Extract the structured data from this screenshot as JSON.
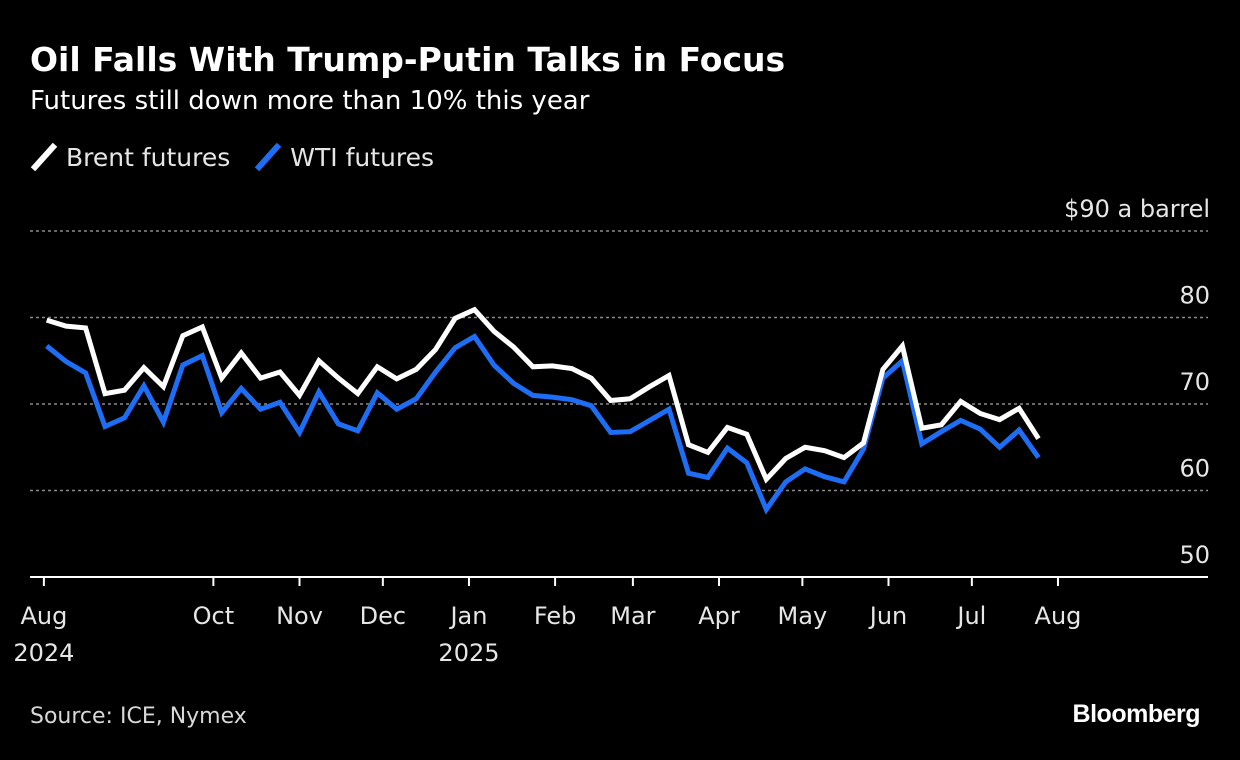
{
  "header": {
    "title": "Oil Falls With Trump-Putin Talks in Focus",
    "subtitle": "Futures still down more than 10% this year"
  },
  "legend": {
    "items": [
      {
        "label": "Brent futures",
        "color": "#ffffff"
      },
      {
        "label": "WTI futures",
        "color": "#1e6ef5"
      }
    ]
  },
  "footer": {
    "source": "Source: ICE, Nymex",
    "brand": "Bloomberg"
  },
  "chart_data": {
    "type": "line",
    "title": "Oil Falls With Trump-Putin Talks in Focus",
    "subtitle": "Futures still down more than 10% this year",
    "ylabel": "$90 a barrel",
    "ylim": [
      50,
      90
    ],
    "yticks": [
      {
        "value": 90,
        "label": "$90 a barrel"
      },
      {
        "value": 80,
        "label": "80"
      },
      {
        "value": 70,
        "label": "70"
      },
      {
        "value": 60,
        "label": "60"
      },
      {
        "value": 50,
        "label": "50"
      }
    ],
    "xlim": [
      "2024-07-27",
      "2025-09-24"
    ],
    "xticks": [
      {
        "date": "2024-08-01",
        "label": "Aug",
        "label2": "2024"
      },
      {
        "date": "2024-10-01",
        "label": "Oct",
        "label2": ""
      },
      {
        "date": "2024-11-01",
        "label": "Nov",
        "label2": ""
      },
      {
        "date": "2024-12-01",
        "label": "Dec",
        "label2": ""
      },
      {
        "date": "2025-01-01",
        "label": "Jan",
        "label2": "2025"
      },
      {
        "date": "2025-02-01",
        "label": "Feb",
        "label2": ""
      },
      {
        "date": "2025-03-01",
        "label": "Mar",
        "label2": ""
      },
      {
        "date": "2025-04-01",
        "label": "Apr",
        "label2": ""
      },
      {
        "date": "2025-05-01",
        "label": "May",
        "label2": ""
      },
      {
        "date": "2025-06-01",
        "label": "Jun",
        "label2": ""
      },
      {
        "date": "2025-07-01",
        "label": "Jul",
        "label2": ""
      },
      {
        "date": "2025-08-01",
        "label": "Aug",
        "label2": ""
      }
    ],
    "grid": true,
    "legend_position": "top-left",
    "series": [
      {
        "name": "Brent futures",
        "color": "#ffffff",
        "points": [
          [
            "2024-08-02",
            79.7
          ],
          [
            "2024-08-09",
            79.0
          ],
          [
            "2024-08-16",
            78.8
          ],
          [
            "2024-08-23",
            71.2
          ],
          [
            "2024-08-30",
            71.6
          ],
          [
            "2024-09-06",
            74.2
          ],
          [
            "2024-09-13",
            72.0
          ],
          [
            "2024-09-20",
            77.9
          ],
          [
            "2024-09-27",
            78.9
          ],
          [
            "2024-10-04",
            73.0
          ],
          [
            "2024-10-11",
            75.9
          ],
          [
            "2024-10-18",
            73.0
          ],
          [
            "2024-10-25",
            73.7
          ],
          [
            "2024-11-01",
            71.0
          ],
          [
            "2024-11-08",
            75.0
          ],
          [
            "2024-11-15",
            73.0
          ],
          [
            "2024-11-22",
            71.2
          ],
          [
            "2024-11-29",
            74.3
          ],
          [
            "2024-12-06",
            72.9
          ],
          [
            "2024-12-13",
            74.0
          ],
          [
            "2024-12-20",
            76.3
          ],
          [
            "2024-12-27",
            79.9
          ],
          [
            "2025-01-03",
            80.9
          ],
          [
            "2025-01-10",
            78.4
          ],
          [
            "2025-01-17",
            76.6
          ],
          [
            "2025-01-24",
            74.3
          ],
          [
            "2025-01-31",
            74.4
          ],
          [
            "2025-02-07",
            74.1
          ],
          [
            "2025-02-14",
            73.0
          ],
          [
            "2025-02-21",
            70.4
          ],
          [
            "2025-02-28",
            70.6
          ],
          [
            "2025-03-07",
            72.0
          ],
          [
            "2025-03-14",
            73.3
          ],
          [
            "2025-03-21",
            65.3
          ],
          [
            "2025-03-28",
            64.4
          ],
          [
            "2025-04-04",
            67.3
          ],
          [
            "2025-04-11",
            66.5
          ],
          [
            "2025-04-18",
            61.3
          ],
          [
            "2025-04-25",
            63.7
          ],
          [
            "2025-05-02",
            65.0
          ],
          [
            "2025-05-09",
            64.6
          ],
          [
            "2025-05-16",
            63.8
          ],
          [
            "2025-05-23",
            65.5
          ],
          [
            "2025-05-30",
            74.0
          ],
          [
            "2025-06-06",
            76.7
          ],
          [
            "2025-06-13",
            67.2
          ],
          [
            "2025-06-20",
            67.6
          ],
          [
            "2025-06-27",
            70.3
          ],
          [
            "2025-07-04",
            68.9
          ],
          [
            "2025-07-11",
            68.2
          ],
          [
            "2025-07-18",
            69.5
          ],
          [
            "2025-07-25",
            66.0
          ]
        ]
      },
      {
        "name": "WTI futures",
        "color": "#1e6ef5",
        "points": [
          [
            "2024-08-02",
            76.7
          ],
          [
            "2024-08-09",
            74.9
          ],
          [
            "2024-08-16",
            73.6
          ],
          [
            "2024-08-23",
            67.4
          ],
          [
            "2024-08-30",
            68.4
          ],
          [
            "2024-09-06",
            72.1
          ],
          [
            "2024-09-13",
            67.9
          ],
          [
            "2024-09-20",
            74.5
          ],
          [
            "2024-09-27",
            75.6
          ],
          [
            "2024-10-04",
            69.0
          ],
          [
            "2024-10-11",
            71.8
          ],
          [
            "2024-10-18",
            69.4
          ],
          [
            "2024-10-25",
            70.2
          ],
          [
            "2024-11-01",
            66.7
          ],
          [
            "2024-11-08",
            71.4
          ],
          [
            "2024-11-15",
            67.7
          ],
          [
            "2024-11-22",
            66.9
          ],
          [
            "2024-11-29",
            71.3
          ],
          [
            "2024-12-06",
            69.4
          ],
          [
            "2024-12-13",
            70.6
          ],
          [
            "2024-12-20",
            73.7
          ],
          [
            "2024-12-27",
            76.5
          ],
          [
            "2025-01-03",
            77.8
          ],
          [
            "2025-01-10",
            74.5
          ],
          [
            "2025-01-17",
            72.4
          ],
          [
            "2025-01-24",
            71.0
          ],
          [
            "2025-01-31",
            70.8
          ],
          [
            "2025-02-07",
            70.5
          ],
          [
            "2025-02-14",
            69.8
          ],
          [
            "2025-02-21",
            66.7
          ],
          [
            "2025-02-28",
            66.8
          ],
          [
            "2025-03-07",
            68.1
          ],
          [
            "2025-03-14",
            69.4
          ],
          [
            "2025-03-21",
            62.0
          ],
          [
            "2025-03-28",
            61.5
          ],
          [
            "2025-04-04",
            64.9
          ],
          [
            "2025-04-11",
            63.2
          ],
          [
            "2025-04-18",
            57.8
          ],
          [
            "2025-04-25",
            61.0
          ],
          [
            "2025-05-02",
            62.5
          ],
          [
            "2025-05-09",
            61.6
          ],
          [
            "2025-05-16",
            61.0
          ],
          [
            "2025-05-23",
            64.8
          ],
          [
            "2025-05-30",
            73.0
          ],
          [
            "2025-06-06",
            75.0
          ],
          [
            "2025-06-13",
            65.4
          ],
          [
            "2025-06-20",
            66.8
          ],
          [
            "2025-06-27",
            68.1
          ],
          [
            "2025-07-04",
            67.1
          ],
          [
            "2025-07-11",
            65.0
          ],
          [
            "2025-07-18",
            67.0
          ],
          [
            "2025-07-25",
            63.8
          ]
        ]
      }
    ]
  }
}
